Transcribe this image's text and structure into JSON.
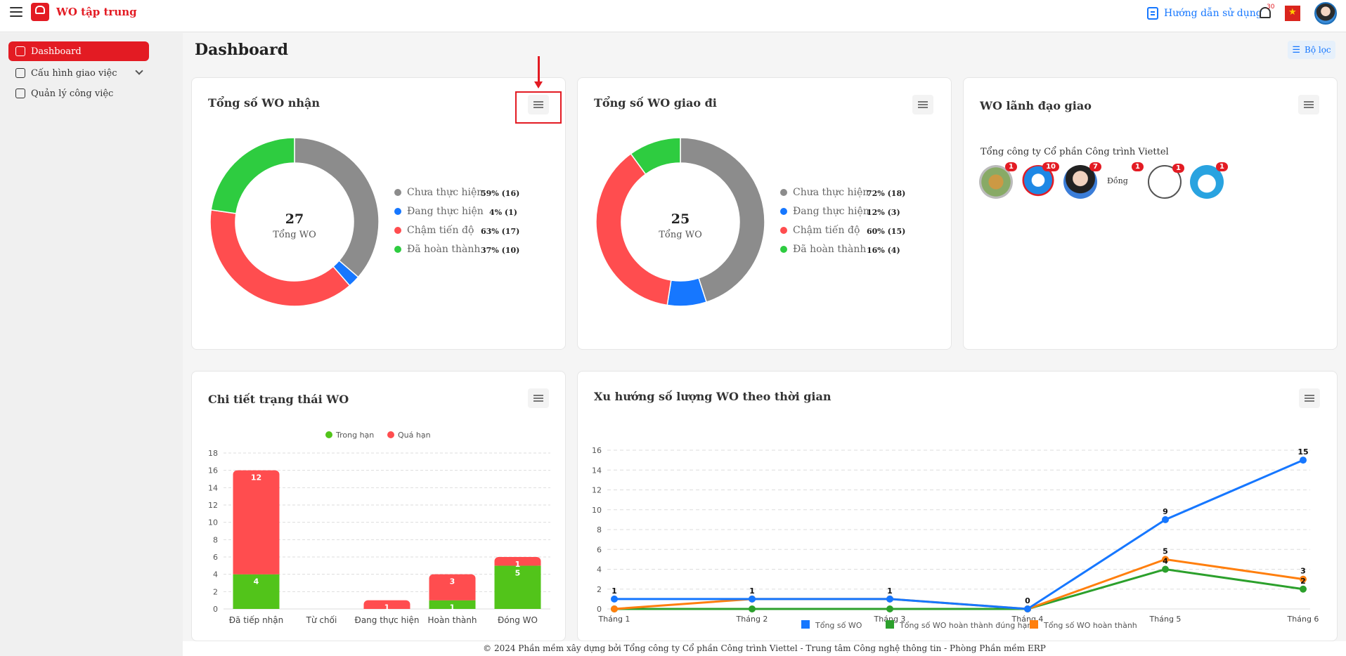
{
  "header": {
    "app_title": "WO tập trung",
    "guide_label": "Hướng dẫn sử dụng",
    "notification_count": "30"
  },
  "sidebar": {
    "items": [
      {
        "label": "Dashboard",
        "active": true
      },
      {
        "label": "Cấu hình giao việc",
        "active": false
      },
      {
        "label": "Quản lý công việc",
        "active": false
      }
    ]
  },
  "page": {
    "title": "Dashboard",
    "filter_label": "Bộ lọc"
  },
  "received": {
    "title": "Tổng số WO nhận",
    "total": "27",
    "total_label": "Tổng WO",
    "legend": [
      {
        "label": "Chưa thực hiện",
        "value": "59% (16)",
        "color": "#8c8c8c"
      },
      {
        "label": "Đang thực hiện",
        "value": "4% (1)",
        "color": "#1677ff"
      },
      {
        "label": "Chậm tiến độ",
        "value": "63% (17)",
        "color": "#ff4d4f"
      },
      {
        "label": "Đã hoàn thành",
        "value": "37% (10)",
        "color": "#2ecc40"
      }
    ]
  },
  "sent": {
    "title": "Tổng số WO giao đi",
    "total": "25",
    "total_label": "Tổng WO",
    "legend": [
      {
        "label": "Chưa thực hiện",
        "value": "72% (18)",
        "color": "#8c8c8c"
      },
      {
        "label": "Đang thực hiện",
        "value": "12% (3)",
        "color": "#1677ff"
      },
      {
        "label": "Chậm tiến độ",
        "value": "60% (15)",
        "color": "#ff4d4f"
      },
      {
        "label": "Đã hoàn thành",
        "value": "16% (4)",
        "color": "#2ecc40"
      }
    ]
  },
  "leaders": {
    "title": "WO lãnh đạo giao",
    "company": "Tổng công ty Cổ phần Công trình Viettel",
    "avatars": [
      {
        "badge": "1",
        "alt": ""
      },
      {
        "badge": "10",
        "alt": ""
      },
      {
        "badge": "7",
        "alt": ""
      },
      {
        "badge": "1",
        "alt": "Đồng"
      },
      {
        "badge": "1",
        "alt": ""
      },
      {
        "badge": "1",
        "alt": ""
      }
    ]
  },
  "status_detail": {
    "title": "Chi tiết trạng thái WO"
  },
  "trend": {
    "title": "Xu hướng số lượng WO theo thời gian"
  },
  "chart_data": [
    {
      "type": "pie",
      "title": "Tổng số WO nhận",
      "labels": [
        "Chưa thực hiện",
        "Đang thực hiện",
        "Chậm tiến độ",
        "Đã hoàn thành"
      ],
      "values": [
        16,
        1,
        17,
        10
      ],
      "colors": [
        "#8c8c8c",
        "#1677ff",
        "#ff4d4f",
        "#2ecc40"
      ]
    },
    {
      "type": "pie",
      "title": "Tổng số WO giao đi",
      "labels": [
        "Chưa thực hiện",
        "Đang thực hiện",
        "Chậm tiến độ",
        "Đã hoàn thành"
      ],
      "values": [
        18,
        3,
        15,
        4
      ],
      "colors": [
        "#8c8c8c",
        "#1677ff",
        "#ff4d4f",
        "#2ecc40"
      ]
    },
    {
      "type": "bar",
      "stacked": true,
      "title": "Chi tiết trạng thái WO",
      "categories": [
        "Đã tiếp nhận",
        "Từ chối",
        "Đang thực hiện",
        "Hoàn thành",
        "Đóng WO"
      ],
      "series": [
        {
          "name": "Trong hạn",
          "values": [
            4,
            0,
            0,
            1,
            5
          ],
          "color": "#52c41a"
        },
        {
          "name": "Quá hạn",
          "values": [
            12,
            0,
            1,
            3,
            1
          ],
          "color": "#ff4d4f"
        }
      ],
      "ylim": [
        0,
        18
      ],
      "yticks": [
        0,
        2,
        4,
        6,
        8,
        10,
        12,
        14,
        16,
        18
      ],
      "legend": "top"
    },
    {
      "type": "line",
      "title": "Xu hướng số lượng WO theo thời gian",
      "categories": [
        "Tháng 1",
        "Tháng 2",
        "Tháng 3",
        "Tháng 4",
        "Tháng 5",
        "Tháng 6"
      ],
      "series": [
        {
          "name": "Tổng số WO",
          "values": [
            1,
            1,
            1,
            0,
            9,
            15
          ],
          "color": "#1677ff"
        },
        {
          "name": "Tổng số WO hoàn thành đúng hạn",
          "values": [
            0,
            0,
            0,
            0,
            4,
            2
          ],
          "color": "#2ca02c"
        },
        {
          "name": "Tổng số WO hoàn thành",
          "values": [
            0,
            1,
            1,
            0,
            5,
            3
          ],
          "color": "#ff7f0e"
        }
      ],
      "ylim": [
        0,
        16
      ],
      "yticks": [
        0,
        2,
        4,
        6,
        8,
        10,
        12,
        14,
        16
      ],
      "legend": "bottom"
    }
  ],
  "footer": {
    "text": "© 2024 Phần mềm xây dựng bởi Tổng công ty Cổ phần Công trình Viettel - Trung tâm Công nghệ thông tin - Phòng Phần mềm ERP"
  }
}
